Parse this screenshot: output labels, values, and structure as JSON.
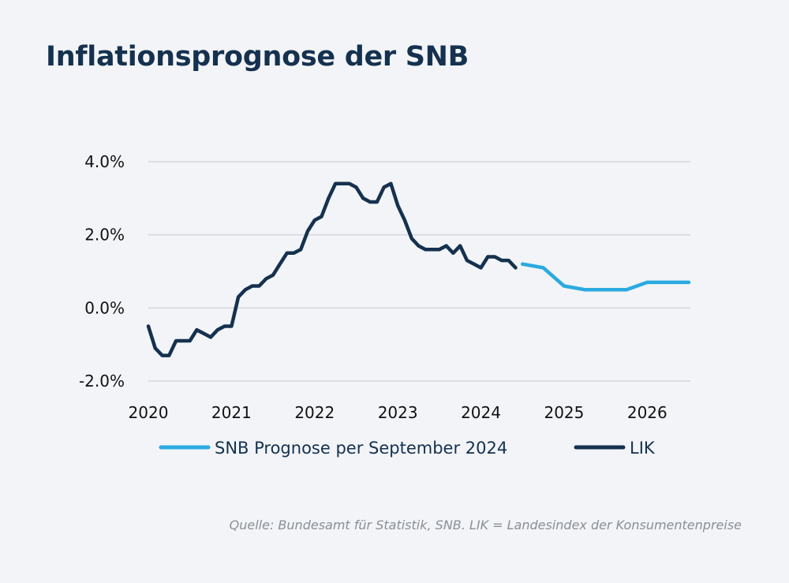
{
  "title": "Inflationsprognose der SNB",
  "source": "Quelle: Bundesamt für Statistik, SNB. LIK = Landesindex der Konsumentenpreise",
  "colors": {
    "lik": "#15314f",
    "prognose": "#2aaae0",
    "grid": "#d3d6db"
  },
  "chart_data": {
    "type": "line",
    "title": "Inflationsprognose der SNB",
    "xlabel": "",
    "ylabel": "",
    "xlim": [
      2020.0,
      2026.5
    ],
    "ylim": [
      -2.0,
      4.0
    ],
    "x_ticks": [
      2020,
      2021,
      2022,
      2023,
      2024,
      2025,
      2026
    ],
    "x_tick_labels": [
      "2020",
      "2021",
      "2022",
      "2023",
      "2024",
      "2025",
      "2026"
    ],
    "y_ticks": [
      -2.0,
      0.0,
      2.0,
      4.0
    ],
    "y_tick_labels": [
      "-2.0%",
      "0.0%",
      "2.0%",
      "4.0%"
    ],
    "grid": "horizontal",
    "legend_position": "bottom",
    "series": [
      {
        "name": "SNB Prognose per September 2024",
        "color": "#2aaae0",
        "points": [
          [
            2024.5,
            1.2
          ],
          [
            2024.75,
            1.1
          ],
          [
            2025.0,
            0.6
          ],
          [
            2025.25,
            0.5
          ],
          [
            2025.5,
            0.5
          ],
          [
            2025.75,
            0.5
          ],
          [
            2026.0,
            0.7
          ],
          [
            2026.25,
            0.7
          ],
          [
            2026.5,
            0.7
          ]
        ]
      },
      {
        "name": "LIK",
        "color": "#15314f",
        "points": [
          [
            2020.0,
            -0.5
          ],
          [
            2020.083,
            -1.1
          ],
          [
            2020.167,
            -1.3
          ],
          [
            2020.25,
            -1.3
          ],
          [
            2020.333,
            -0.9
          ],
          [
            2020.417,
            -0.9
          ],
          [
            2020.5,
            -0.9
          ],
          [
            2020.583,
            -0.6
          ],
          [
            2020.667,
            -0.7
          ],
          [
            2020.75,
            -0.8
          ],
          [
            2020.833,
            -0.6
          ],
          [
            2020.917,
            -0.5
          ],
          [
            2021.0,
            -0.5
          ],
          [
            2021.083,
            0.3
          ],
          [
            2021.167,
            0.5
          ],
          [
            2021.25,
            0.6
          ],
          [
            2021.333,
            0.6
          ],
          [
            2021.417,
            0.8
          ],
          [
            2021.5,
            0.9
          ],
          [
            2021.583,
            1.2
          ],
          [
            2021.667,
            1.5
          ],
          [
            2021.75,
            1.5
          ],
          [
            2021.833,
            1.6
          ],
          [
            2021.917,
            2.1
          ],
          [
            2022.0,
            2.4
          ],
          [
            2022.083,
            2.5
          ],
          [
            2022.167,
            3.0
          ],
          [
            2022.25,
            3.4
          ],
          [
            2022.333,
            3.4
          ],
          [
            2022.417,
            3.4
          ],
          [
            2022.5,
            3.3
          ],
          [
            2022.583,
            3.0
          ],
          [
            2022.667,
            2.9
          ],
          [
            2022.75,
            2.9
          ],
          [
            2022.833,
            3.3
          ],
          [
            2022.917,
            3.4
          ],
          [
            2023.0,
            2.8
          ],
          [
            2023.083,
            2.4
          ],
          [
            2023.167,
            1.9
          ],
          [
            2023.25,
            1.7
          ],
          [
            2023.333,
            1.6
          ],
          [
            2023.417,
            1.6
          ],
          [
            2023.5,
            1.6
          ],
          [
            2023.583,
            1.7
          ],
          [
            2023.667,
            1.5
          ],
          [
            2023.75,
            1.7
          ],
          [
            2023.833,
            1.3
          ],
          [
            2023.917,
            1.2
          ],
          [
            2024.0,
            1.1
          ],
          [
            2024.083,
            1.4
          ],
          [
            2024.167,
            1.4
          ],
          [
            2024.25,
            1.3
          ],
          [
            2024.333,
            1.3
          ],
          [
            2024.417,
            1.1
          ]
        ]
      }
    ]
  }
}
